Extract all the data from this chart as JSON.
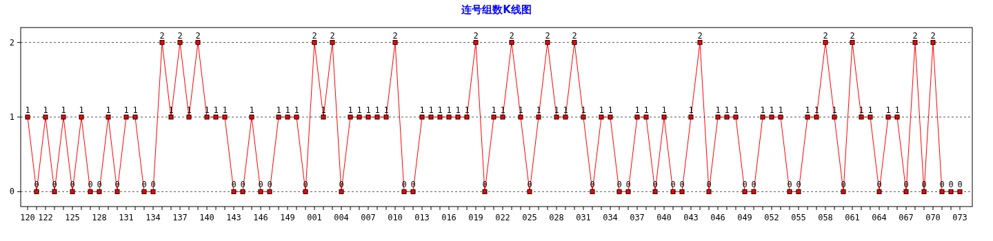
{
  "chart_data": {
    "type": "line",
    "title": "连号组数K线图",
    "categories": [
      "120",
      null,
      "122",
      null,
      null,
      "125",
      null,
      null,
      "128",
      null,
      null,
      "131",
      null,
      null,
      "134",
      null,
      null,
      "137",
      null,
      null,
      "140",
      null,
      null,
      "143",
      null,
      null,
      "146",
      null,
      null,
      "149",
      null,
      null,
      "001",
      null,
      null,
      "004",
      null,
      null,
      "007",
      null,
      null,
      "010",
      null,
      null,
      "013",
      null,
      null,
      "016",
      null,
      null,
      "019",
      null,
      null,
      "022",
      null,
      null,
      "025",
      null,
      null,
      "028",
      null,
      null,
      "031",
      null,
      null,
      "034",
      null,
      null,
      "037",
      null,
      null,
      "040",
      null,
      null,
      "043",
      null,
      null,
      "046",
      null,
      null,
      "049",
      null,
      null,
      "052",
      null,
      null,
      "055",
      null,
      null,
      "058",
      null,
      null,
      "061",
      null,
      null,
      "064",
      null,
      null,
      "067",
      null,
      null,
      "070",
      null,
      null,
      "073"
    ],
    "series": [
      {
        "color": "#ff0000",
        "values": [
          1,
          0,
          1,
          0,
          1,
          0,
          1,
          0,
          0,
          1,
          0,
          1,
          1,
          0,
          0,
          2,
          1,
          2,
          1,
          2,
          1,
          1,
          1,
          0,
          0,
          1,
          0,
          0,
          1,
          1,
          1,
          0,
          2,
          1,
          2,
          0,
          1,
          1,
          1,
          1,
          1,
          2,
          0,
          0,
          1,
          1,
          1,
          1,
          1,
          1,
          2,
          0,
          1,
          1,
          2,
          1,
          0,
          1,
          2,
          1,
          1,
          2,
          1,
          0,
          1,
          1,
          0,
          0,
          1,
          1,
          0,
          1,
          0,
          0,
          1,
          2,
          0,
          1,
          1,
          1,
          0,
          0,
          1,
          1,
          1,
          0,
          0,
          1,
          1,
          2,
          1,
          0,
          2,
          1,
          1,
          0,
          1,
          1,
          0,
          2,
          0,
          2,
          0,
          0,
          0
        ]
      }
    ],
    "ylim": [
      -0.2,
      2.2
    ],
    "yticks": [
      0,
      1,
      2
    ],
    "grid": "y",
    "marker": "square",
    "line_style": "solid",
    "data_labels": true
  }
}
